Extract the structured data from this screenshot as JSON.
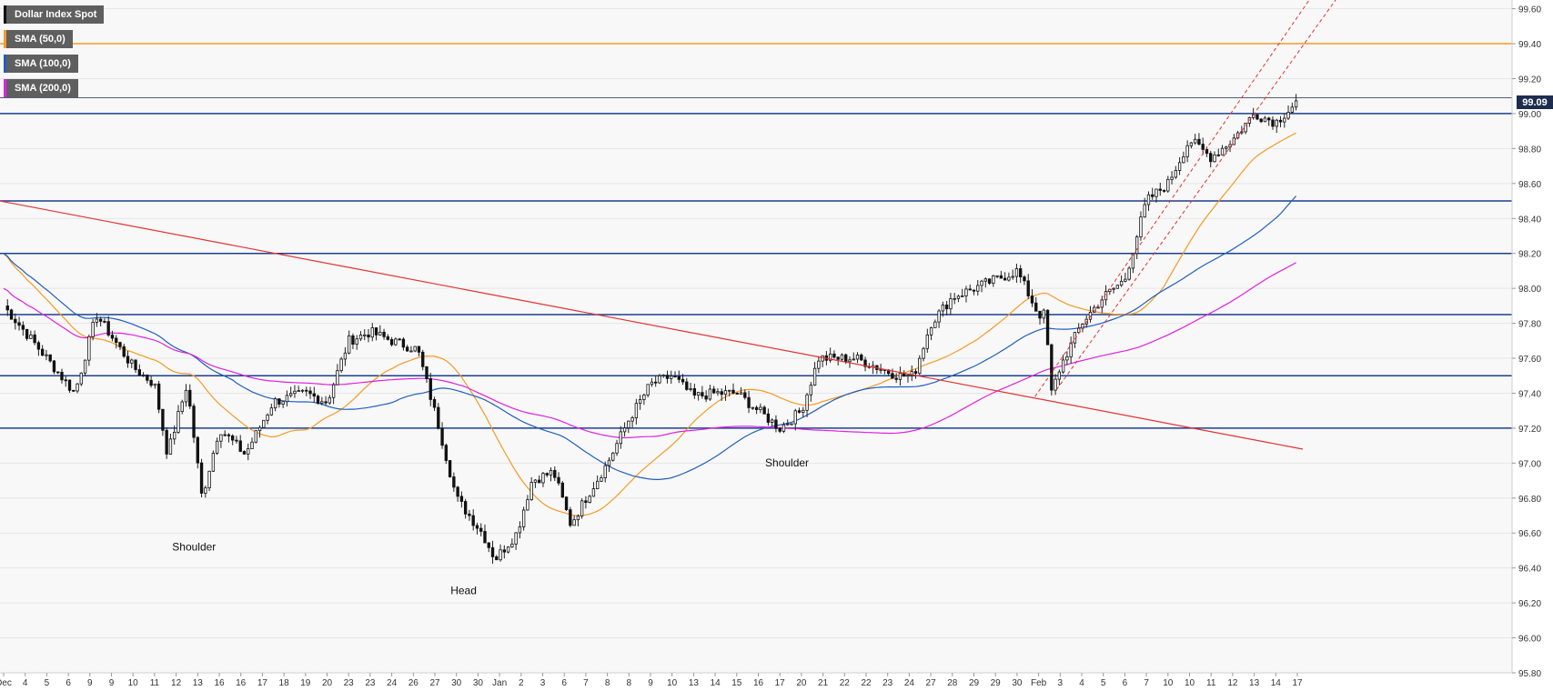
{
  "legend": {
    "instrument": {
      "label": "Dollar Index Spot",
      "color": "#111111"
    },
    "sma50": {
      "label": "SMA (50,0)",
      "color": "#f59a23"
    },
    "sma100": {
      "label": "SMA (100,0)",
      "color": "#1f5fbf"
    },
    "sma200": {
      "label": "SMA (200,0)",
      "color": "#e020e0"
    }
  },
  "chart_data": {
    "type": "candlestick",
    "instrument": "Dollar Index Spot",
    "ylim": [
      95.8,
      99.65
    ],
    "y_ticks": [
      "99.60",
      "99.40",
      "99.20",
      "99.00",
      "98.80",
      "98.60",
      "98.40",
      "98.20",
      "98.00",
      "97.80",
      "97.60",
      "97.40",
      "97.20",
      "97.00",
      "96.80",
      "96.60",
      "96.40",
      "96.20",
      "96.00",
      "95.80"
    ],
    "x_ticks": [
      "Dec",
      "4",
      "5",
      "6",
      "9",
      "9",
      "10",
      "11",
      "12",
      "13",
      "16",
      "16",
      "17",
      "18",
      "19",
      "20",
      "23",
      "23",
      "24",
      "26",
      "27",
      "30",
      "30",
      "Jan",
      "2",
      "3",
      "6",
      "7",
      "8",
      "8",
      "9",
      "10",
      "13",
      "14",
      "15",
      "16",
      "17",
      "20",
      "21",
      "22",
      "22",
      "23",
      "24",
      "27",
      "28",
      "29",
      "29",
      "30",
      "Feb",
      "3",
      "4",
      "5",
      "6",
      "7",
      "10",
      "10",
      "11",
      "12",
      "13",
      "14",
      "17"
    ],
    "current_price": "99.09",
    "current_price_value": 99.09,
    "horizontal_levels": {
      "orange": [
        99.4
      ],
      "blue": [
        99.0,
        98.5,
        98.2,
        97.85,
        97.5,
        97.2
      ]
    },
    "trendline_red": [
      [
        0,
        98.5
      ],
      [
        60,
        97.08
      ]
    ],
    "channel_dashed": [
      [
        [
          48,
          97.38
        ],
        [
          61,
          99.7
        ]
      ],
      [
        [
          49,
          97.42
        ],
        [
          62,
          99.66
        ]
      ]
    ],
    "annotations": [
      {
        "text": "Shoulder",
        "x": 9,
        "y": 96.5
      },
      {
        "text": "Head",
        "x": 21.5,
        "y": 96.25
      },
      {
        "text": "Shoulder",
        "x": 36.5,
        "y": 96.98
      }
    ],
    "anchors": [
      [
        0,
        97.9
      ],
      [
        2,
        97.6
      ],
      [
        3.3,
        97.4
      ],
      [
        4.3,
        97.85
      ],
      [
        6,
        97.55
      ],
      [
        7,
        97.45
      ],
      [
        7.6,
        97.05
      ],
      [
        8.5,
        97.45
      ],
      [
        9.2,
        96.8
      ],
      [
        10,
        97.2
      ],
      [
        11.2,
        97.05
      ],
      [
        12.5,
        97.35
      ],
      [
        14,
        97.4
      ],
      [
        15,
        97.35
      ],
      [
        16,
        97.7
      ],
      [
        17,
        97.75
      ],
      [
        18,
        97.7
      ],
      [
        19.2,
        97.65
      ],
      [
        20.2,
        97.2
      ],
      [
        21,
        96.8
      ],
      [
        22.2,
        96.6
      ],
      [
        22.8,
        96.45
      ],
      [
        23.8,
        96.6
      ],
      [
        24.5,
        96.9
      ],
      [
        25.5,
        96.95
      ],
      [
        26.3,
        96.65
      ],
      [
        27,
        96.8
      ],
      [
        28,
        97.0
      ],
      [
        29,
        97.25
      ],
      [
        30,
        97.45
      ],
      [
        31,
        97.5
      ],
      [
        32,
        97.38
      ],
      [
        33,
        97.4
      ],
      [
        34,
        97.4
      ],
      [
        35,
        97.3
      ],
      [
        36,
        97.2
      ],
      [
        37,
        97.3
      ],
      [
        37.8,
        97.6
      ],
      [
        38.8,
        97.6
      ],
      [
        39.5,
        97.6
      ],
      [
        40.5,
        97.55
      ],
      [
        41.5,
        97.5
      ],
      [
        42.2,
        97.5
      ],
      [
        43,
        97.8
      ],
      [
        44,
        97.95
      ],
      [
        45,
        98.0
      ],
      [
        46,
        98.05
      ],
      [
        47,
        98.1
      ],
      [
        48,
        97.85
      ],
      [
        48.3,
        97.85
      ],
      [
        48.6,
        97.4
      ],
      [
        49,
        97.55
      ],
      [
        50,
        97.8
      ],
      [
        51,
        97.95
      ],
      [
        52,
        98.05
      ],
      [
        53,
        98.5
      ],
      [
        54,
        98.6
      ],
      [
        55,
        98.85
      ],
      [
        56,
        98.75
      ],
      [
        57,
        98.85
      ],
      [
        58,
        99.0
      ],
      [
        59,
        98.95
      ],
      [
        60,
        99.07
      ]
    ]
  }
}
